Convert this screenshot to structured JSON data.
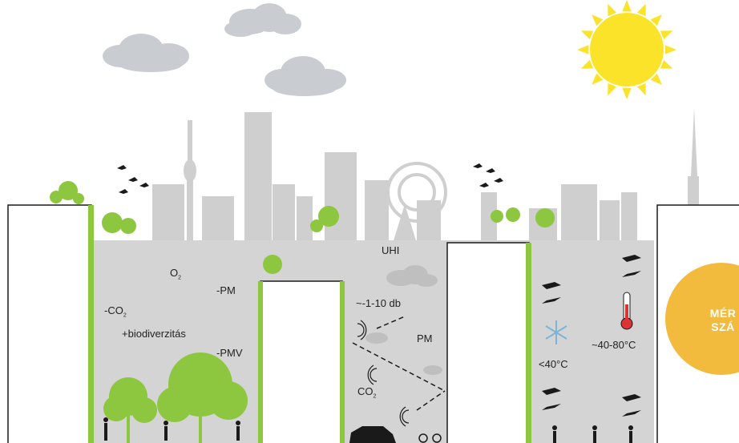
{
  "labels": {
    "o2": "O",
    "o2_sub": "2",
    "pm_left": "-PM",
    "co2_left": "-CO",
    "co2_left_sub": "2",
    "biodiversity": "+biodiverzitás",
    "pmv": "-PMV",
    "uhi": "UHI",
    "noise": "~-1-10 db",
    "pm_mid": "PM",
    "co2_mid": "CO",
    "co2_mid_sub": "2",
    "temp_low": "<40°C",
    "temp_high": "~40-80°C"
  },
  "badge": {
    "line1": "MÉR",
    "line2": "SZÁ",
    "color": "#f2bb3e"
  },
  "colors": {
    "green": "#8dc63f",
    "sky_gray": "#cfcfcf",
    "ground_gray": "#d4d4d4",
    "cloud": "#c9ccd0",
    "sun": "#fbe32a",
    "ink": "#1a1a1a"
  },
  "icons": [
    "sun-icon",
    "cloud-icon",
    "bird-icon",
    "tree-icon",
    "person-icon",
    "car-icon",
    "snowflake-icon",
    "thermometer-icon",
    "wind-arrow-icon",
    "sound-wave-icon"
  ]
}
